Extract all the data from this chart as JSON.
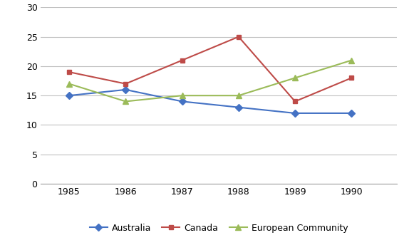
{
  "years": [
    1985,
    1986,
    1987,
    1988,
    1989,
    1990
  ],
  "australia": [
    15,
    16,
    14,
    13,
    12,
    12
  ],
  "canada": [
    19,
    17,
    21,
    25,
    14,
    18
  ],
  "european_community": [
    17,
    14,
    15,
    15,
    18,
    21
  ],
  "australia_color": "#4472C4",
  "canada_color": "#BE4B48",
  "ec_color": "#9BBB59",
  "ylim": [
    0,
    30
  ],
  "yticks": [
    0,
    5,
    10,
    15,
    20,
    25,
    30
  ],
  "legend_labels": [
    "Australia",
    "Canada",
    "European Community"
  ],
  "background_color": "#FFFFFF",
  "grid_color": "#C0C0C0",
  "spine_color": "#A0A0A0"
}
